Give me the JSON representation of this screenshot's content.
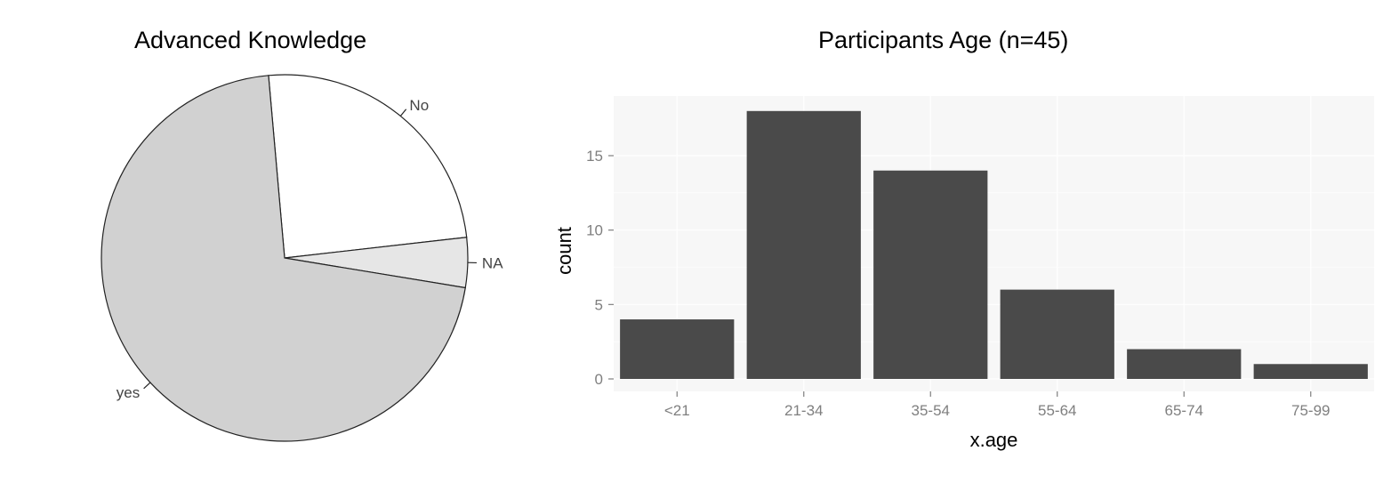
{
  "chart_data": [
    {
      "type": "pie",
      "title": "Advanced Knowledge",
      "slices": [
        {
          "label": "No",
          "value": 0.246,
          "color": "#ffffff"
        },
        {
          "label": "NA",
          "value": 0.044,
          "color": "#e6e6e6"
        },
        {
          "label": "yes",
          "value": 0.71,
          "color": "#d1d1d1"
        }
      ]
    },
    {
      "type": "bar",
      "title": "Participants Age (n=45)",
      "xlabel": "x.age",
      "ylabel": "count",
      "categories": [
        "<21",
        "21-34",
        "35-54",
        "55-64",
        "65-74",
        "75-99"
      ],
      "values": [
        4,
        18,
        14,
        6,
        2,
        1
      ],
      "yticks": [
        0,
        5,
        10,
        15
      ],
      "ylim": [
        0,
        19
      ],
      "bar_color": "#4a4a4a",
      "panel_background": "#f7f7f7",
      "grid": true
    }
  ]
}
